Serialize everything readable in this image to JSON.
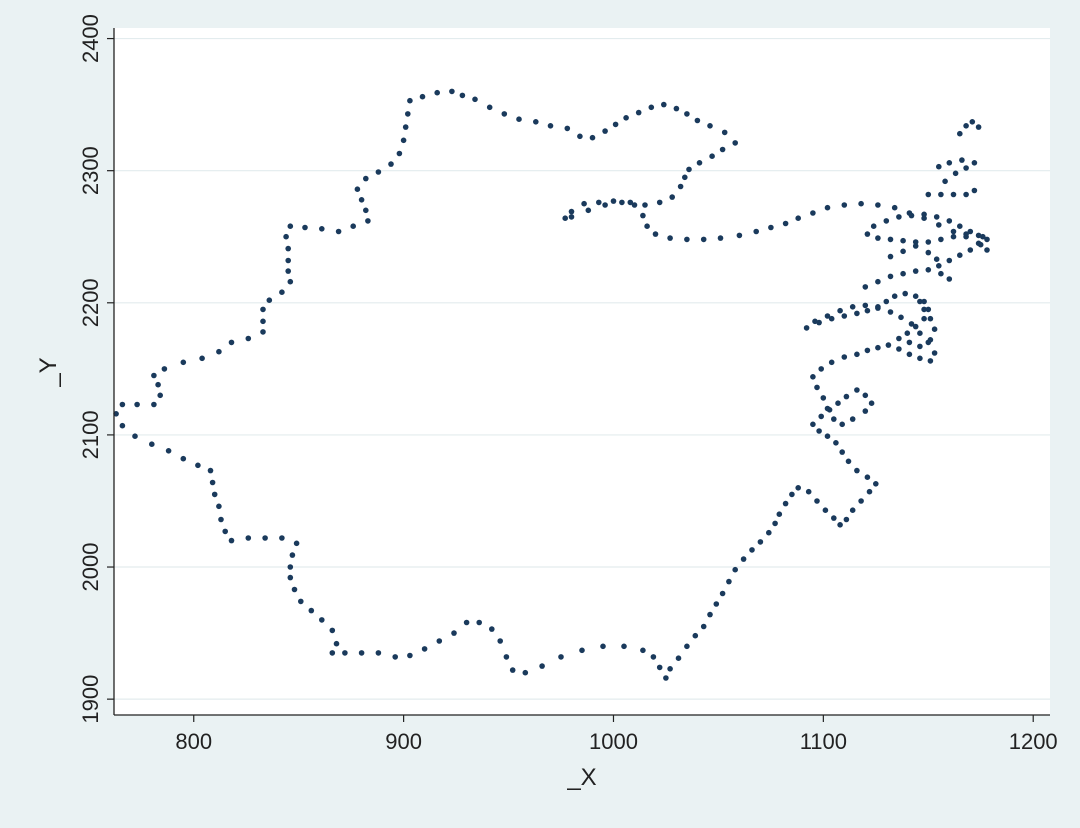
{
  "chart_data": {
    "type": "scatter",
    "title": "",
    "xlabel": "_X",
    "ylabel": "_Y",
    "xlim": [
      762,
      1208
    ],
    "ylim": [
      1888,
      2408
    ],
    "x_ticks": [
      800,
      900,
      1000,
      1100,
      1200
    ],
    "y_ticks": [
      1900,
      2000,
      2100,
      2200,
      2300,
      2400
    ],
    "x_tick_labels": [
      "800",
      "900",
      "1000",
      "1100",
      "1200"
    ],
    "y_tick_labels": [
      "1900",
      "2000",
      "2100",
      "2200",
      "2300",
      "2400"
    ],
    "grid": true,
    "legend": "none",
    "colors": {
      "background": "#eaf2f3",
      "plot_area": "#ffffff",
      "gridline": "#e3ecee",
      "marker": "#1a3a5c",
      "axis": "#222222"
    },
    "series": [
      {
        "outline": [
          [
            1025,
            1916
          ],
          [
            1022,
            1924
          ],
          [
            1019,
            1932
          ],
          [
            1014,
            1937
          ],
          [
            1005,
            1940
          ],
          [
            995,
            1940
          ],
          [
            985,
            1937
          ],
          [
            975,
            1932
          ],
          [
            966,
            1925
          ],
          [
            958,
            1920
          ],
          [
            952,
            1922
          ],
          [
            949,
            1932
          ],
          [
            946,
            1944
          ],
          [
            942,
            1953
          ],
          [
            936,
            1958
          ],
          [
            930,
            1958
          ],
          [
            924,
            1950
          ],
          [
            917,
            1944
          ],
          [
            910,
            1938
          ],
          [
            903,
            1933
          ],
          [
            896,
            1932
          ],
          [
            888,
            1935
          ],
          [
            880,
            1935
          ],
          [
            872,
            1935
          ],
          [
            866,
            1935
          ],
          [
            868,
            1942
          ],
          [
            866,
            1952
          ],
          [
            861,
            1960
          ],
          [
            856,
            1967
          ],
          [
            851,
            1974
          ],
          [
            848,
            1983
          ],
          [
            846,
            1992
          ],
          [
            846,
            2000
          ],
          [
            847,
            2009
          ],
          [
            849,
            2018
          ],
          [
            842,
            2022
          ],
          [
            834,
            2022
          ],
          [
            826,
            2022
          ],
          [
            818,
            2020
          ],
          [
            815,
            2027
          ],
          [
            813,
            2036
          ],
          [
            812,
            2046
          ],
          [
            810,
            2055
          ],
          [
            809,
            2064
          ],
          [
            808,
            2073
          ],
          [
            802,
            2077
          ],
          [
            795,
            2082
          ],
          [
            788,
            2088
          ],
          [
            780,
            2093
          ],
          [
            772,
            2099
          ],
          [
            766,
            2107
          ],
          [
            763,
            2116
          ],
          [
            766,
            2123
          ],
          [
            773,
            2123
          ],
          [
            781,
            2123
          ],
          [
            784,
            2130
          ],
          [
            783,
            2138
          ],
          [
            781,
            2145
          ],
          [
            786,
            2150
          ],
          [
            795,
            2155
          ],
          [
            804,
            2158
          ],
          [
            812,
            2163
          ],
          [
            818,
            2170
          ],
          [
            826,
            2173
          ],
          [
            833,
            2178
          ],
          [
            833,
            2186
          ],
          [
            833,
            2195
          ],
          [
            836,
            2202
          ],
          [
            842,
            2208
          ],
          [
            846,
            2216
          ],
          [
            845,
            2224
          ],
          [
            845,
            2232
          ],
          [
            845,
            2241
          ],
          [
            844,
            2250
          ],
          [
            846,
            2258
          ],
          [
            853,
            2257
          ],
          [
            861,
            2256
          ],
          [
            869,
            2254
          ],
          [
            876,
            2258
          ],
          [
            883,
            2262
          ],
          [
            882,
            2270
          ],
          [
            880,
            2278
          ],
          [
            878,
            2286
          ],
          [
            882,
            2294
          ],
          [
            888,
            2299
          ],
          [
            894,
            2305
          ],
          [
            898,
            2313
          ],
          [
            900,
            2323
          ],
          [
            901,
            2333
          ],
          [
            902,
            2343
          ],
          [
            903,
            2353
          ],
          [
            909,
            2356
          ],
          [
            916,
            2359
          ],
          [
            923,
            2360
          ],
          [
            928,
            2357
          ],
          [
            934,
            2354
          ],
          [
            941,
            2348
          ],
          [
            948,
            2343
          ],
          [
            955,
            2339
          ],
          [
            963,
            2337
          ],
          [
            970,
            2334
          ],
          [
            978,
            2332
          ],
          [
            984,
            2326
          ],
          [
            990,
            2325
          ],
          [
            996,
            2330
          ],
          [
            1001,
            2335
          ],
          [
            1006,
            2340
          ],
          [
            1012,
            2344
          ],
          [
            1018,
            2348
          ],
          [
            1024,
            2350
          ],
          [
            1030,
            2347
          ],
          [
            1035,
            2343
          ],
          [
            1040,
            2338
          ],
          [
            1046,
            2334
          ],
          [
            1053,
            2329
          ],
          [
            1058,
            2321
          ],
          [
            1052,
            2316
          ],
          [
            1047,
            2311
          ],
          [
            1041,
            2306
          ],
          [
            1036,
            2301
          ],
          [
            1034,
            2295
          ],
          [
            1032,
            2288
          ],
          [
            1028,
            2280
          ],
          [
            1022,
            2276
          ],
          [
            1015,
            2274
          ],
          [
            1008,
            2276
          ],
          [
            1000,
            2277
          ],
          [
            993,
            2276
          ],
          [
            986,
            2275
          ],
          [
            980,
            2269
          ],
          [
            977,
            2264
          ]
        ],
        "inner_curve": [
          [
            980,
            2265
          ],
          [
            988,
            2270
          ],
          [
            996,
            2274
          ],
          [
            1004,
            2276
          ],
          [
            1010,
            2274
          ],
          [
            1014,
            2266
          ],
          [
            1016,
            2258
          ],
          [
            1020,
            2252
          ],
          [
            1027,
            2249
          ],
          [
            1035,
            2248
          ],
          [
            1043,
            2248
          ],
          [
            1051,
            2249
          ],
          [
            1060,
            2251
          ],
          [
            1068,
            2254
          ],
          [
            1075,
            2257
          ],
          [
            1082,
            2260
          ],
          [
            1088,
            2264
          ],
          [
            1095,
            2268
          ],
          [
            1102,
            2272
          ],
          [
            1110,
            2274
          ],
          [
            1118,
            2275
          ],
          [
            1126,
            2274
          ],
          [
            1134,
            2272
          ],
          [
            1141,
            2268
          ],
          [
            1148,
            2264
          ],
          [
            1155,
            2259
          ],
          [
            1162,
            2254
          ],
          [
            1168,
            2250
          ],
          [
            1174,
            2245
          ],
          [
            1178,
            2240
          ]
        ],
        "southeast_coast": [
          [
            1027,
            1923
          ],
          [
            1031,
            1931
          ],
          [
            1035,
            1940
          ],
          [
            1039,
            1948
          ],
          [
            1043,
            1955
          ],
          [
            1046,
            1964
          ],
          [
            1049,
            1972
          ],
          [
            1052,
            1980
          ],
          [
            1055,
            1989
          ],
          [
            1058,
            1998
          ],
          [
            1062,
            2006
          ],
          [
            1066,
            2013
          ],
          [
            1070,
            2019
          ],
          [
            1074,
            2026
          ],
          [
            1077,
            2033
          ],
          [
            1079,
            2040
          ],
          [
            1082,
            2048
          ],
          [
            1085,
            2055
          ],
          [
            1088,
            2060
          ],
          [
            1093,
            2057
          ],
          [
            1097,
            2050
          ],
          [
            1101,
            2043
          ],
          [
            1105,
            2037
          ],
          [
            1108,
            2032
          ],
          [
            1111,
            2036
          ],
          [
            1114,
            2043
          ],
          [
            1118,
            2050
          ],
          [
            1122,
            2057
          ],
          [
            1125,
            2063
          ],
          [
            1121,
            2068
          ],
          [
            1116,
            2073
          ],
          [
            1112,
            2080
          ],
          [
            1109,
            2087
          ],
          [
            1106,
            2094
          ],
          [
            1102,
            2099
          ],
          [
            1098,
            2103
          ],
          [
            1095,
            2108
          ],
          [
            1099,
            2114
          ],
          [
            1103,
            2119
          ],
          [
            1107,
            2124
          ],
          [
            1111,
            2129
          ],
          [
            1116,
            2134
          ],
          [
            1120,
            2130
          ],
          [
            1123,
            2124
          ],
          [
            1120,
            2118
          ],
          [
            1114,
            2112
          ],
          [
            1109,
            2108
          ],
          [
            1105,
            2112
          ],
          [
            1102,
            2120
          ],
          [
            1100,
            2128
          ],
          [
            1097,
            2136
          ],
          [
            1095,
            2144
          ],
          [
            1099,
            2150
          ],
          [
            1104,
            2155
          ],
          [
            1110,
            2159
          ],
          [
            1116,
            2161
          ],
          [
            1121,
            2164
          ],
          [
            1126,
            2166
          ],
          [
            1131,
            2168
          ],
          [
            1136,
            2165
          ],
          [
            1141,
            2161
          ],
          [
            1146,
            2158
          ],
          [
            1151,
            2156
          ],
          [
            1153,
            2162
          ],
          [
            1150,
            2170
          ],
          [
            1146,
            2177
          ],
          [
            1142,
            2184
          ],
          [
            1137,
            2189
          ],
          [
            1132,
            2193
          ],
          [
            1126,
            2196
          ],
          [
            1120,
            2198
          ],
          [
            1114,
            2197
          ],
          [
            1108,
            2194
          ],
          [
            1102,
            2190
          ],
          [
            1096,
            2186
          ],
          [
            1092,
            2181
          ],
          [
            1098,
            2185
          ],
          [
            1104,
            2188
          ],
          [
            1110,
            2190
          ],
          [
            1116,
            2192
          ],
          [
            1121,
            2194
          ],
          [
            1126,
            2197
          ],
          [
            1130,
            2201
          ],
          [
            1134,
            2205
          ],
          [
            1139,
            2207
          ],
          [
            1144,
            2205
          ],
          [
            1148,
            2201
          ],
          [
            1150,
            2195
          ],
          [
            1148,
            2188
          ],
          [
            1144,
            2182
          ],
          [
            1140,
            2177
          ],
          [
            1136,
            2173
          ],
          [
            1141,
            2170
          ],
          [
            1146,
            2167
          ],
          [
            1151,
            2172
          ],
          [
            1153,
            2180
          ],
          [
            1151,
            2188
          ],
          [
            1148,
            2195
          ],
          [
            1146,
            2201
          ]
        ],
        "northeast_cluster": [
          [
            1120,
            2212
          ],
          [
            1126,
            2216
          ],
          [
            1132,
            2220
          ],
          [
            1138,
            2222
          ],
          [
            1144,
            2224
          ],
          [
            1150,
            2225
          ],
          [
            1155,
            2228
          ],
          [
            1160,
            2232
          ],
          [
            1165,
            2236
          ],
          [
            1170,
            2240
          ],
          [
            1175,
            2244
          ],
          [
            1178,
            2248
          ],
          [
            1174,
            2251
          ],
          [
            1168,
            2252
          ],
          [
            1162,
            2250
          ],
          [
            1156,
            2248
          ],
          [
            1150,
            2246
          ],
          [
            1144,
            2246
          ],
          [
            1138,
            2247
          ],
          [
            1132,
            2248
          ],
          [
            1126,
            2249
          ],
          [
            1121,
            2252
          ],
          [
            1124,
            2258
          ],
          [
            1130,
            2262
          ],
          [
            1136,
            2265
          ],
          [
            1142,
            2266
          ],
          [
            1148,
            2267
          ],
          [
            1154,
            2265
          ],
          [
            1160,
            2262
          ],
          [
            1165,
            2258
          ],
          [
            1170,
            2254
          ],
          [
            1176,
            2250
          ],
          [
            1150,
            2282
          ],
          [
            1156,
            2282
          ],
          [
            1162,
            2282
          ],
          [
            1168,
            2282
          ],
          [
            1172,
            2285
          ],
          [
            1158,
            2292
          ],
          [
            1163,
            2298
          ],
          [
            1168,
            2302
          ],
          [
            1172,
            2306
          ],
          [
            1166,
            2308
          ],
          [
            1160,
            2306
          ],
          [
            1155,
            2303
          ],
          [
            1165,
            2328
          ],
          [
            1168,
            2334
          ],
          [
            1171,
            2337
          ],
          [
            1174,
            2333
          ],
          [
            1132,
            2235
          ],
          [
            1138,
            2239
          ],
          [
            1144,
            2243
          ],
          [
            1150,
            2238
          ],
          [
            1154,
            2233
          ],
          [
            1156,
            2222
          ],
          [
            1160,
            2218
          ]
        ]
      }
    ]
  }
}
